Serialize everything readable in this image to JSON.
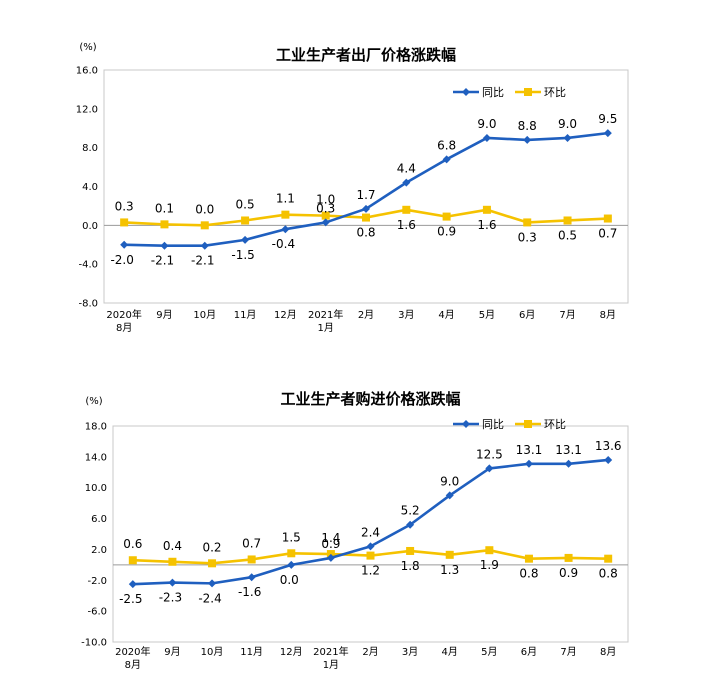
{
  "colors": {
    "yoy": "#1f5fbf",
    "mom": "#f5c200",
    "plot_border": "#c8c8c8"
  },
  "chart_data": [
    {
      "type": "line",
      "title": "工业生产者出厂价格涨跌幅",
      "unit": "(%)",
      "categories": [
        "2020年\n8月",
        "9月",
        "10月",
        "11月",
        "12月",
        "2021年\n1月",
        "2月",
        "3月",
        "4月",
        "5月",
        "6月",
        "7月",
        "8月"
      ],
      "series": [
        {
          "name": "同比",
          "color": "#1f5fbf",
          "marker": "diamond",
          "values": [
            -2.0,
            -2.1,
            -2.1,
            -1.5,
            -0.4,
            0.3,
            1.7,
            4.4,
            6.8,
            9.0,
            8.8,
            9.0,
            9.5
          ]
        },
        {
          "name": "环比",
          "color": "#f5c200",
          "marker": "square",
          "values": [
            0.3,
            0.1,
            0.0,
            0.5,
            1.1,
            1.0,
            0.8,
            1.6,
            0.9,
            1.6,
            0.3,
            0.5,
            0.7
          ]
        }
      ],
      "ylim": [
        -8.0,
        16.0
      ],
      "yticks": [
        "16.0",
        "12.0",
        "8.0",
        "4.0",
        "0.0",
        "-4.0",
        "-8.0"
      ],
      "ytick_values": [
        16,
        12,
        8,
        4,
        0,
        -4,
        -8
      ],
      "yoy_labels": [
        "-2.0",
        "-2.1",
        "-2.1",
        "-1.5",
        "-0.4",
        "0.3",
        "1.7",
        "4.4",
        "6.8",
        "9.0",
        "8.8",
        "9.0",
        "9.5"
      ],
      "mom_labels": [
        "0.3",
        "0.1",
        "0.0",
        "0.5",
        "1.1",
        "1.0",
        "0.8",
        "1.6",
        "0.9",
        "1.6",
        "0.3",
        "0.5",
        "0.7"
      ],
      "legend": "top-right",
      "grid": false
    },
    {
      "type": "line",
      "title": "工业生产者购进价格涨跌幅",
      "unit": "(%)",
      "categories": [
        "2020年\n8月",
        "9月",
        "10月",
        "11月",
        "12月",
        "2021年\n1月",
        "2月",
        "3月",
        "4月",
        "5月",
        "6月",
        "7月",
        "8月"
      ],
      "series": [
        {
          "name": "同比",
          "color": "#1f5fbf",
          "marker": "diamond",
          "values": [
            -2.5,
            -2.3,
            -2.4,
            -1.6,
            0.0,
            0.9,
            2.4,
            5.2,
            9.0,
            12.5,
            13.1,
            13.1,
            13.6
          ]
        },
        {
          "name": "环比",
          "color": "#f5c200",
          "marker": "square",
          "values": [
            0.6,
            0.4,
            0.2,
            0.7,
            1.5,
            1.4,
            1.2,
            1.8,
            1.3,
            1.9,
            0.8,
            0.9,
            0.8
          ]
        }
      ],
      "ylim": [
        -10.0,
        18.0
      ],
      "yticks": [
        "18.0",
        "14.0",
        "10.0",
        "6.0",
        "2.0",
        "-2.0",
        "-6.0",
        "-10.0"
      ],
      "ytick_values": [
        18,
        14,
        10,
        6,
        2,
        -2,
        -6,
        -10
      ],
      "yoy_labels": [
        "-2.5",
        "-2.3",
        "-2.4",
        "-1.6",
        "0.0",
        "0.9",
        "2.4",
        "5.2",
        "9.0",
        "12.5",
        "13.1",
        "13.1",
        "13.6"
      ],
      "mom_labels": [
        "0.6",
        "0.4",
        "0.2",
        "0.7",
        "1.5",
        "1.4",
        "1.2",
        "1.8",
        "1.3",
        "1.9",
        "0.8",
        "0.9",
        "0.8"
      ],
      "legend": "top-right",
      "grid": false
    }
  ]
}
